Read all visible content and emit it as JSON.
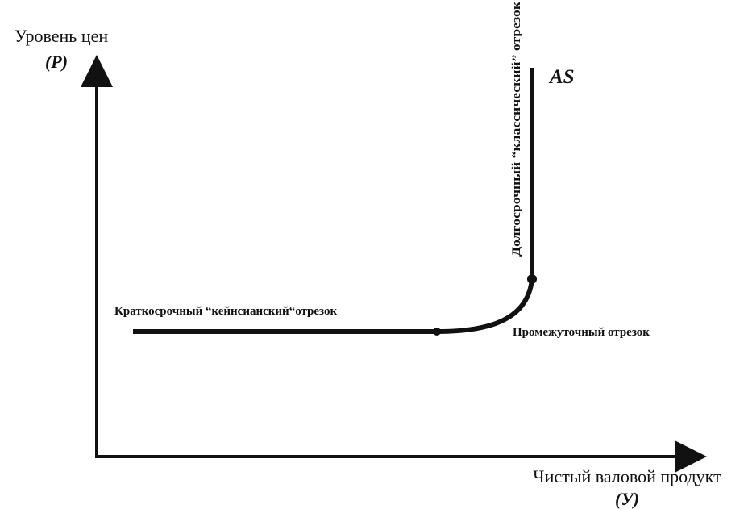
{
  "y_axis": {
    "label": "Уровень цен",
    "symbol": "(P)"
  },
  "x_axis": {
    "label": "Чистый валовой продукт",
    "symbol": "(У)"
  },
  "curve": {
    "name": "AS",
    "segments": {
      "short_run": "Краткосрочный “кейнсианский“отрезок",
      "intermediate": "Промежуточный отрезок",
      "long_run": "Долгосрочный “классический” отрезок"
    }
  }
}
